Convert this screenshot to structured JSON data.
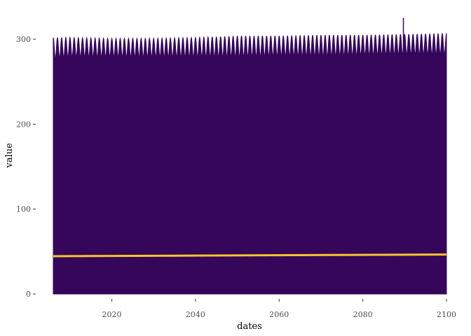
{
  "chart_data": {
    "type": "area",
    "title": "",
    "xlabel": "dates",
    "ylabel": "value",
    "xlim": [
      2006,
      2100
    ],
    "ylim": [
      0,
      320
    ],
    "x_ticks": [
      2020,
      2040,
      2060,
      2080,
      2100
    ],
    "y_ticks": [
      0,
      100,
      200,
      300
    ],
    "x_tick_labels": [
      "2020",
      "2040",
      "2060",
      "2080",
      "2100"
    ],
    "y_tick_labels": [
      "0",
      "100",
      "200",
      "300"
    ],
    "grid": false,
    "legend": "none",
    "series": [
      {
        "type": "area",
        "color": "#35065a",
        "seasonal": true,
        "baseline": 0,
        "upper_envelope": {
          "x": [
            2006,
            2010,
            2020,
            2030,
            2040,
            2050,
            2060,
            2070,
            2080,
            2090,
            2100
          ],
          "y": [
            302,
            302,
            301,
            301,
            302,
            304,
            304,
            305,
            305,
            306,
            307
          ]
        },
        "lower_envelope": {
          "x": [
            2006,
            2010,
            2020,
            2030,
            2040,
            2050,
            2060,
            2070,
            2080,
            2090,
            2100
          ],
          "y": [
            277,
            279,
            279,
            279,
            279,
            279,
            280,
            280,
            281,
            282,
            282
          ]
        },
        "spike": {
          "x": 2089.7,
          "y": 325
        }
      },
      {
        "type": "line",
        "color": "#f6c62d",
        "x": [
          2006,
          2100
        ],
        "y": [
          44.5,
          46.5
        ]
      }
    ]
  }
}
